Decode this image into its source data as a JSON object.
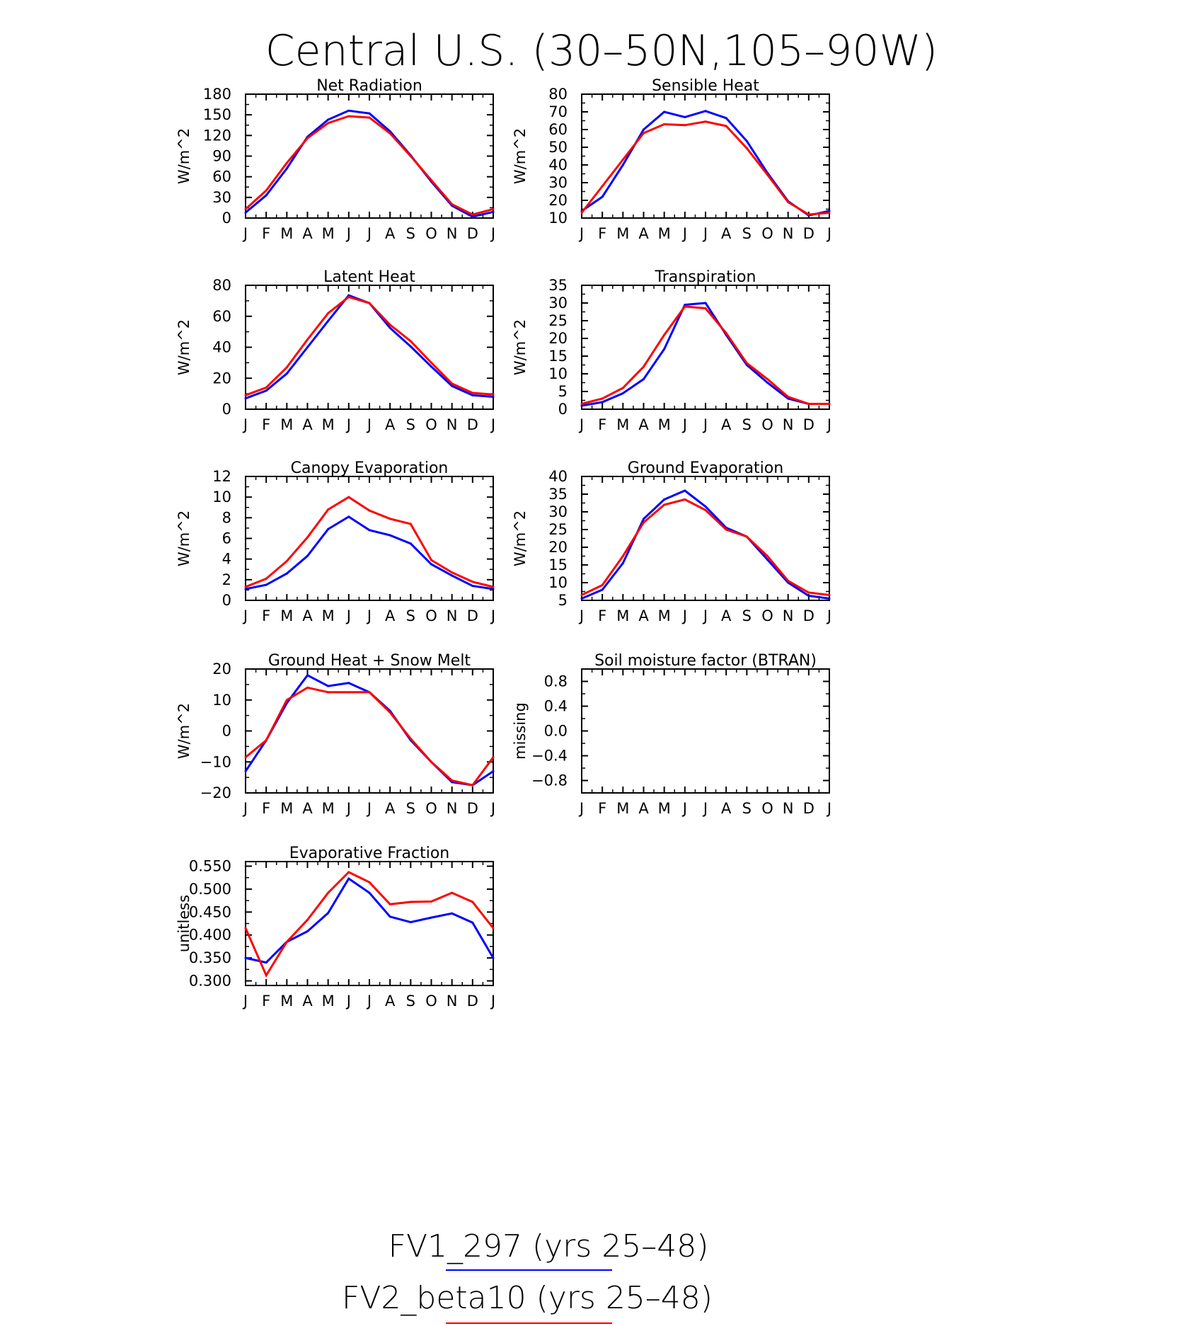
{
  "title": "Central U.S. (30–50N,105–90W)",
  "month_labels": [
    "J",
    "F",
    "M",
    "A",
    "M",
    "J",
    "J",
    "A",
    "S",
    "O",
    "N",
    "D",
    "J"
  ],
  "series_colors": {
    "FV1_297": "#0000ff",
    "FV2_beta10": "#ff0000"
  },
  "legend": [
    {
      "label": "FV1_297 (yrs 25–48)",
      "color": "#0000ff"
    },
    {
      "label": "FV2_beta10 (yrs 25–48)",
      "color": "#ff0000"
    }
  ],
  "chart_data": [
    {
      "type": "line",
      "title": "Net Radiation",
      "ylabel": "W/m^2",
      "ylim": [
        0,
        180
      ],
      "yticks": [
        0,
        30,
        60,
        90,
        120,
        150,
        180
      ],
      "ytick_labels": [
        "0",
        "30",
        "60",
        "90",
        "120",
        "150",
        "180"
      ],
      "minor_step": 15,
      "categories": [
        "J",
        "F",
        "M",
        "A",
        "M",
        "J",
        "J",
        "A",
        "S",
        "O",
        "N",
        "D",
        "J"
      ],
      "series": [
        {
          "name": "FV1_297",
          "color": "#0000ff",
          "values": [
            8,
            33,
            72,
            118,
            143,
            156,
            152,
            126,
            91,
            53,
            18,
            2,
            9
          ]
        },
        {
          "name": "FV2_beta10",
          "color": "#ff0000",
          "values": [
            13,
            40,
            80,
            116,
            138,
            148,
            146,
            123,
            90,
            55,
            20,
            5,
            13
          ]
        }
      ]
    },
    {
      "type": "line",
      "title": "Sensible Heat",
      "ylabel": "W/m^2",
      "ylim": [
        10,
        80
      ],
      "yticks": [
        10,
        20,
        30,
        40,
        50,
        60,
        70,
        80
      ],
      "ytick_labels": [
        "10",
        "20",
        "30",
        "40",
        "50",
        "60",
        "70",
        "80"
      ],
      "minor_step": 5,
      "categories": [
        "J",
        "F",
        "M",
        "A",
        "M",
        "J",
        "J",
        "A",
        "S",
        "O",
        "N",
        "D",
        "J"
      ],
      "series": [
        {
          "name": "FV1_297",
          "color": "#0000ff",
          "values": [
            14,
            22,
            40,
            60,
            70,
            67,
            70.5,
            66.5,
            53.5,
            35.5,
            19.5,
            11.5,
            14
          ]
        },
        {
          "name": "FV2_beta10",
          "color": "#ff0000",
          "values": [
            13,
            28,
            43,
            58,
            63,
            62.5,
            64.5,
            62,
            49.5,
            34.5,
            19,
            12,
            13
          ]
        }
      ]
    },
    {
      "type": "line",
      "title": "Latent Heat",
      "ylabel": "W/m^2",
      "ylim": [
        0,
        80
      ],
      "yticks": [
        0,
        20,
        40,
        60,
        80
      ],
      "ytick_labels": [
        "0",
        "20",
        "40",
        "60",
        "80"
      ],
      "minor_step": 10,
      "categories": [
        "J",
        "F",
        "M",
        "A",
        "M",
        "J",
        "J",
        "A",
        "S",
        "O",
        "N",
        "D",
        "J"
      ],
      "series": [
        {
          "name": "FV1_297",
          "color": "#0000ff",
          "values": [
            7,
            12,
            23,
            40,
            57,
            73.5,
            68.5,
            52.5,
            40.5,
            27.5,
            15,
            9,
            8
          ]
        },
        {
          "name": "FV2_beta10",
          "color": "#ff0000",
          "values": [
            9,
            14,
            27,
            45,
            62,
            72.5,
            68.5,
            54.5,
            44,
            30,
            16.5,
            10.5,
            9.5
          ]
        }
      ]
    },
    {
      "type": "line",
      "title": "Transpiration",
      "ylabel": "W/m^2",
      "ylim": [
        0,
        35
      ],
      "yticks": [
        0,
        5,
        10,
        15,
        20,
        25,
        30,
        35
      ],
      "ytick_labels": [
        "0",
        "5",
        "10",
        "15",
        "20",
        "25",
        "30",
        "35"
      ],
      "minor_step": 2.5,
      "categories": [
        "J",
        "F",
        "M",
        "A",
        "M",
        "J",
        "J",
        "A",
        "S",
        "O",
        "N",
        "D",
        "J"
      ],
      "series": [
        {
          "name": "FV1_297",
          "color": "#0000ff",
          "values": [
            1,
            2,
            4.5,
            8.5,
            17,
            29.5,
            30,
            21,
            12.5,
            7.5,
            3,
            1.5,
            1.5
          ]
        },
        {
          "name": "FV2_beta10",
          "color": "#ff0000",
          "values": [
            1.5,
            3,
            6,
            12,
            21,
            29,
            28.5,
            21.5,
            13,
            8.5,
            3.5,
            1.5,
            1.5
          ]
        }
      ]
    },
    {
      "type": "line",
      "title": "Canopy Evaporation",
      "ylabel": "W/m^2",
      "ylim": [
        0,
        12
      ],
      "yticks": [
        0,
        2,
        4,
        6,
        8,
        10,
        12
      ],
      "ytick_labels": [
        "0",
        "2",
        "4",
        "6",
        "8",
        "10",
        "12"
      ],
      "minor_step": 1,
      "categories": [
        "J",
        "F",
        "M",
        "A",
        "M",
        "J",
        "J",
        "A",
        "S",
        "O",
        "N",
        "D",
        "J"
      ],
      "series": [
        {
          "name": "FV1_297",
          "color": "#0000ff",
          "values": [
            1.1,
            1.5,
            2.6,
            4.3,
            6.9,
            8.1,
            6.8,
            6.3,
            5.5,
            3.5,
            2.4,
            1.4,
            1.1
          ]
        },
        {
          "name": "FV2_beta10",
          "color": "#ff0000",
          "values": [
            1.3,
            2.1,
            3.8,
            6.1,
            8.8,
            10,
            8.7,
            7.9,
            7.4,
            3.9,
            2.7,
            1.8,
            1.3
          ]
        }
      ]
    },
    {
      "type": "line",
      "title": "Ground Evaporation",
      "ylabel": "W/m^2",
      "ylim": [
        5,
        40
      ],
      "yticks": [
        5,
        10,
        15,
        20,
        25,
        30,
        35,
        40
      ],
      "ytick_labels": [
        "5",
        "10",
        "15",
        "20",
        "25",
        "30",
        "35",
        "40"
      ],
      "minor_step": 2.5,
      "categories": [
        "J",
        "F",
        "M",
        "A",
        "M",
        "J",
        "J",
        "A",
        "S",
        "O",
        "N",
        "D",
        "J"
      ],
      "series": [
        {
          "name": "FV1_297",
          "color": "#0000ff",
          "values": [
            5.5,
            8,
            15.5,
            28,
            33.5,
            36,
            31.5,
            25.5,
            23,
            16.5,
            10,
            6.3,
            5.5
          ]
        },
        {
          "name": "FV2_beta10",
          "color": "#ff0000",
          "values": [
            6.5,
            9.3,
            17.5,
            27,
            32,
            33.5,
            30.5,
            25,
            23,
            17.5,
            10.5,
            7.2,
            6.5
          ]
        }
      ]
    },
    {
      "type": "line",
      "title": "Ground Heat + Snow Melt",
      "ylabel": "W/m^2",
      "ylim": [
        -20,
        20
      ],
      "yticks": [
        -20,
        -10,
        0,
        10,
        20
      ],
      "ytick_labels": [
        "−20",
        "−10",
        "0",
        "10",
        "20"
      ],
      "minor_step": 5,
      "categories": [
        "J",
        "F",
        "M",
        "A",
        "M",
        "J",
        "J",
        "A",
        "S",
        "O",
        "N",
        "D",
        "J"
      ],
      "series": [
        {
          "name": "FV1_297",
          "color": "#0000ff",
          "values": [
            -13,
            -3,
            9,
            18,
            14.5,
            15.5,
            12.5,
            6.5,
            -3,
            -10,
            -16.5,
            -17.5,
            -13
          ]
        },
        {
          "name": "FV2_beta10",
          "color": "#ff0000",
          "values": [
            -8.5,
            -3,
            10,
            14,
            12.5,
            12.5,
            12.5,
            6,
            -2.5,
            -10,
            -16,
            -17.5,
            -8.5
          ]
        }
      ]
    },
    {
      "type": "line",
      "title": "Soil moisture factor (BTRAN)",
      "ylabel": "missing",
      "ylim": [
        -1,
        1
      ],
      "yticks": [
        -0.8,
        -0.4,
        0.0,
        0.4,
        0.8
      ],
      "ytick_labels": [
        "−0.8",
        "−0.4",
        "0.0",
        "0.4",
        "0.8"
      ],
      "minor_step": 0.2,
      "categories": [
        "J",
        "F",
        "M",
        "A",
        "M",
        "J",
        "J",
        "A",
        "S",
        "O",
        "N",
        "D",
        "J"
      ],
      "series": []
    },
    {
      "type": "line",
      "title": "Evaporative Fraction",
      "ylabel": "unitless",
      "ylim": [
        0.29,
        0.56
      ],
      "yticks": [
        0.3,
        0.35,
        0.4,
        0.45,
        0.5,
        0.55
      ],
      "ytick_labels": [
        "0.300",
        "0.350",
        "0.400",
        "0.450",
        "0.500",
        "0.550"
      ],
      "minor_step": 0.025,
      "categories": [
        "J",
        "F",
        "M",
        "A",
        "M",
        "J",
        "J",
        "A",
        "S",
        "O",
        "N",
        "D",
        "J"
      ],
      "series": [
        {
          "name": "FV1_297",
          "color": "#0000ff",
          "values": [
            0.35,
            0.34,
            0.385,
            0.408,
            0.448,
            0.523,
            0.492,
            0.44,
            0.428,
            0.438,
            0.447,
            0.427,
            0.35
          ]
        },
        {
          "name": "FV2_beta10",
          "color": "#ff0000",
          "values": [
            0.415,
            0.312,
            0.385,
            0.433,
            0.492,
            0.537,
            0.515,
            0.467,
            0.472,
            0.473,
            0.492,
            0.472,
            0.415
          ]
        }
      ]
    }
  ]
}
